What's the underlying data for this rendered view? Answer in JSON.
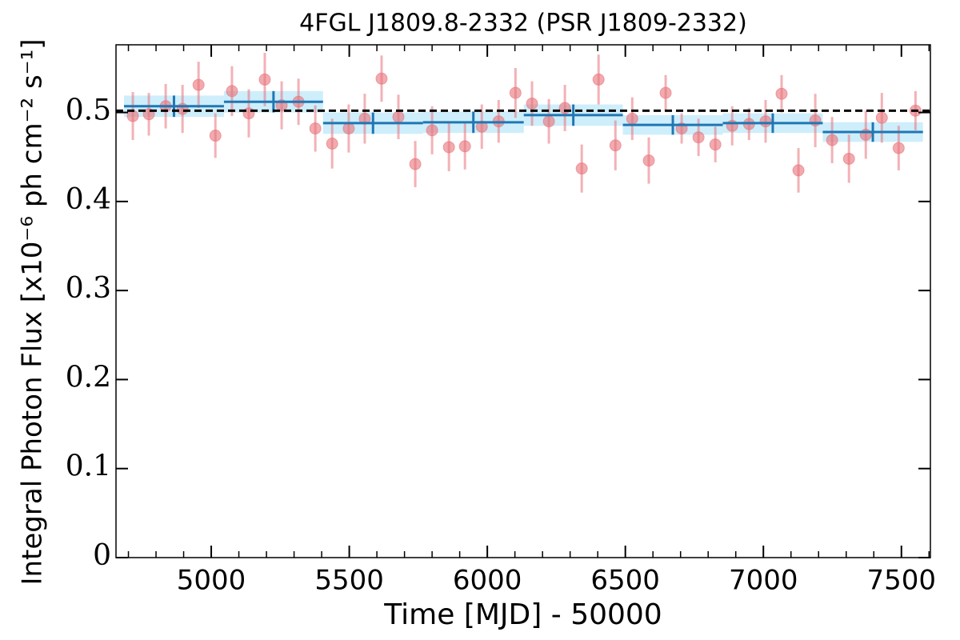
{
  "chart_data": {
    "type": "lightcurve",
    "title": "4FGL J1809.8-2332 (PSR J1809-2332)",
    "xlabel": "Time [MJD] - 50000",
    "ylabel": "Integral Photon Flux [x10⁻⁶ ph cm⁻² s⁻¹]",
    "xlim": [
      4655,
      7605
    ],
    "ylim": [
      0,
      0.576
    ],
    "xticks": [
      5000,
      5500,
      6000,
      6500,
      7000,
      7500
    ],
    "xminorticks": [
      4700,
      4800,
      4900,
      5100,
      5200,
      5300,
      5400,
      5600,
      5700,
      5800,
      5900,
      6100,
      6200,
      6300,
      6400,
      6600,
      6700,
      6800,
      6900,
      7100,
      7200,
      7300,
      7400,
      7600
    ],
    "yticks": [
      0,
      0.1,
      0.2,
      0.3,
      0.4,
      0.5
    ],
    "points": {
      "color": "#e8737a",
      "x": [
        4716,
        4774,
        4835,
        4896,
        4954,
        5015,
        5075,
        5136,
        5194,
        5255,
        5316,
        5377,
        5438,
        5498,
        5556,
        5617,
        5678,
        5739,
        5800,
        5861,
        5919,
        5980,
        6041,
        6102,
        6162,
        6223,
        6281,
        6342,
        6403,
        6464,
        6525,
        6585,
        6646,
        6704,
        6765,
        6826,
        6887,
        6948,
        7008,
        7066,
        7127,
        7188,
        7249,
        7310,
        7371,
        7429,
        7490,
        7551
      ],
      "values": [
        0.496,
        0.498,
        0.507,
        0.504,
        0.531,
        0.474,
        0.524,
        0.499,
        0.537,
        0.508,
        0.512,
        0.482,
        0.465,
        0.482,
        0.493,
        0.538,
        0.495,
        0.442,
        0.48,
        0.461,
        0.462,
        0.484,
        0.49,
        0.522,
        0.51,
        0.49,
        0.505,
        0.437,
        0.537,
        0.463,
        0.493,
        0.446,
        0.522,
        0.482,
        0.472,
        0.464,
        0.485,
        0.487,
        0.49,
        0.521,
        0.435,
        0.491,
        0.469,
        0.448,
        0.475,
        0.494,
        0.46,
        0.502
      ],
      "errors": [
        0.027,
        0.024,
        0.025,
        0.027,
        0.026,
        0.025,
        0.028,
        0.027,
        0.03,
        0.027,
        0.026,
        0.026,
        0.028,
        0.027,
        0.028,
        0.026,
        0.025,
        0.026,
        0.027,
        0.027,
        0.026,
        0.025,
        0.024,
        0.028,
        0.025,
        0.025,
        0.026,
        0.027,
        0.028,
        0.028,
        0.024,
        0.026,
        0.02,
        0.017,
        0.021,
        0.02,
        0.022,
        0.018,
        0.024,
        0.021,
        0.025,
        0.03,
        0.026,
        0.027,
        0.027,
        0.028,
        0.025,
        0.022
      ]
    },
    "binned": {
      "color": "#1f77b4",
      "fill": "#c9ecfb",
      "x_start": [
        4684,
        5046,
        5405,
        5767,
        6132,
        6491,
        6853,
        7215
      ],
      "x_end": [
        5046,
        5405,
        5767,
        6132,
        6491,
        6853,
        7215,
        7578
      ],
      "values": [
        0.507,
        0.512,
        0.488,
        0.489,
        0.497,
        0.486,
        0.488,
        0.478
      ],
      "errors": [
        0.012,
        0.012,
        0.012,
        0.012,
        0.012,
        0.011,
        0.011,
        0.011
      ]
    },
    "mean": 0.502,
    "mean_color": "#000000"
  }
}
